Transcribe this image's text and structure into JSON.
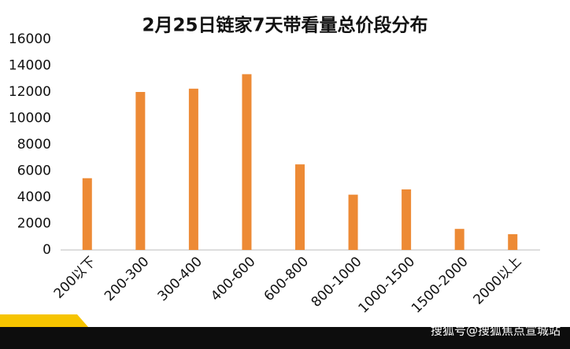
{
  "chart_data": {
    "type": "bar",
    "title": "2月25日链家7天带看量总价段分布",
    "categories": [
      "200以下",
      "200-300",
      "300-400",
      "400-600",
      "600-800",
      "800-1000",
      "1000-1500",
      "1500-2000",
      "2000以上"
    ],
    "values": [
      5450,
      12000,
      12250,
      13350,
      6500,
      4200,
      4600,
      1600,
      1200
    ],
    "color": "#ed8a35",
    "ylim": [
      0,
      16000
    ],
    "yticks": [
      0,
      2000,
      4000,
      6000,
      8000,
      10000,
      12000,
      14000,
      16000
    ],
    "grid": false
  },
  "watermark": "搜狐号@搜狐焦点宣城站"
}
